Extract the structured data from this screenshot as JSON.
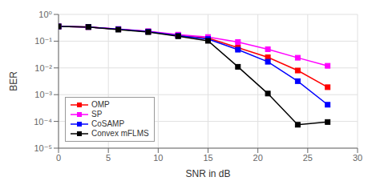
{
  "chart_data": {
    "type": "line",
    "x": [
      0,
      3,
      6,
      9,
      12,
      15,
      18,
      21,
      24,
      27
    ],
    "series": [
      {
        "name": "OMP",
        "color": "#ff0000",
        "marker": "square",
        "values": [
          0.355,
          0.34,
          0.28,
          0.23,
          0.165,
          0.13,
          0.057,
          0.025,
          0.008,
          0.0019
        ]
      },
      {
        "name": "SP",
        "color": "#ff00ff",
        "marker": "square",
        "values": [
          0.355,
          0.34,
          0.285,
          0.235,
          0.175,
          0.143,
          0.093,
          0.05,
          0.024,
          0.012
        ]
      },
      {
        "name": "CoSAMP",
        "color": "#0000ff",
        "marker": "square",
        "values": [
          0.355,
          0.34,
          0.278,
          0.228,
          0.16,
          0.12,
          0.048,
          0.017,
          0.0032,
          0.00042
        ]
      },
      {
        "name": "Convex mFLMS",
        "color": "#000000",
        "marker": "square",
        "values": [
          0.355,
          0.338,
          0.27,
          0.218,
          0.153,
          0.103,
          0.011,
          0.0011,
          7.5e-05,
          9.5e-05
        ]
      }
    ],
    "xlabel": "SNR in dB",
    "ylabel": "BER",
    "xlim": [
      0,
      30
    ],
    "ylim": [
      1e-05,
      1
    ],
    "xticks": [
      0,
      5,
      10,
      15,
      20,
      25,
      30
    ],
    "yticks": [
      {
        "value": 1e-05,
        "label": "10⁻⁵"
      },
      {
        "value": 0.0001,
        "label": "10⁻⁴"
      },
      {
        "value": 0.001,
        "label": "10⁻³"
      },
      {
        "value": 0.01,
        "label": "10⁻²"
      },
      {
        "value": 0.1,
        "label": "10⁻¹"
      },
      {
        "value": 1,
        "label": "10⁰"
      }
    ],
    "log": "y",
    "grid": true,
    "legend": "lower left"
  }
}
